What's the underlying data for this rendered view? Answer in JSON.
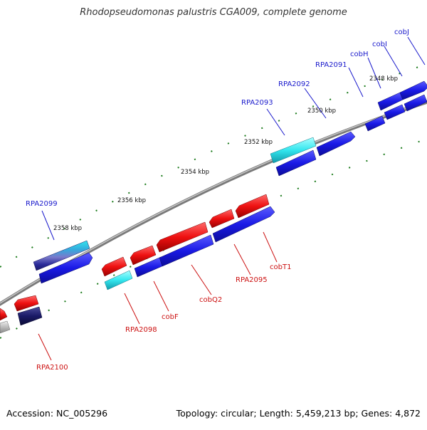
{
  "title": "Rhodopseudomonas palustris CGA009, complete genome",
  "footer": {
    "accession": "Accession: NC_005296",
    "summary": "Topology: circular; Length: 5,459,213 bp; Genes: 4,872"
  },
  "scale_labels": [
    "2348 kbp",
    "2350 kbp",
    "2352 kbp",
    "2354 kbp",
    "2356 kbp",
    "2358 kbp"
  ],
  "forward_genes": [
    "RPA2099",
    "RPA2093",
    "RPA2092",
    "RPA2091",
    "cobH",
    "cobI",
    "cobJ"
  ],
  "reverse_genes": [
    "RPA2100",
    "RPA2098",
    "cobF",
    "cobQ2",
    "RPA2095",
    "cobT1"
  ],
  "colors": {
    "forward_label": "#1a1acc",
    "reverse_label": "#cc1111",
    "forward_gene": "#1a1ae6",
    "reverse_gene": "#ee1111",
    "highlight_gene": "#33e6ee",
    "backbone": "#888888",
    "tick": "#1a7a1a"
  }
}
